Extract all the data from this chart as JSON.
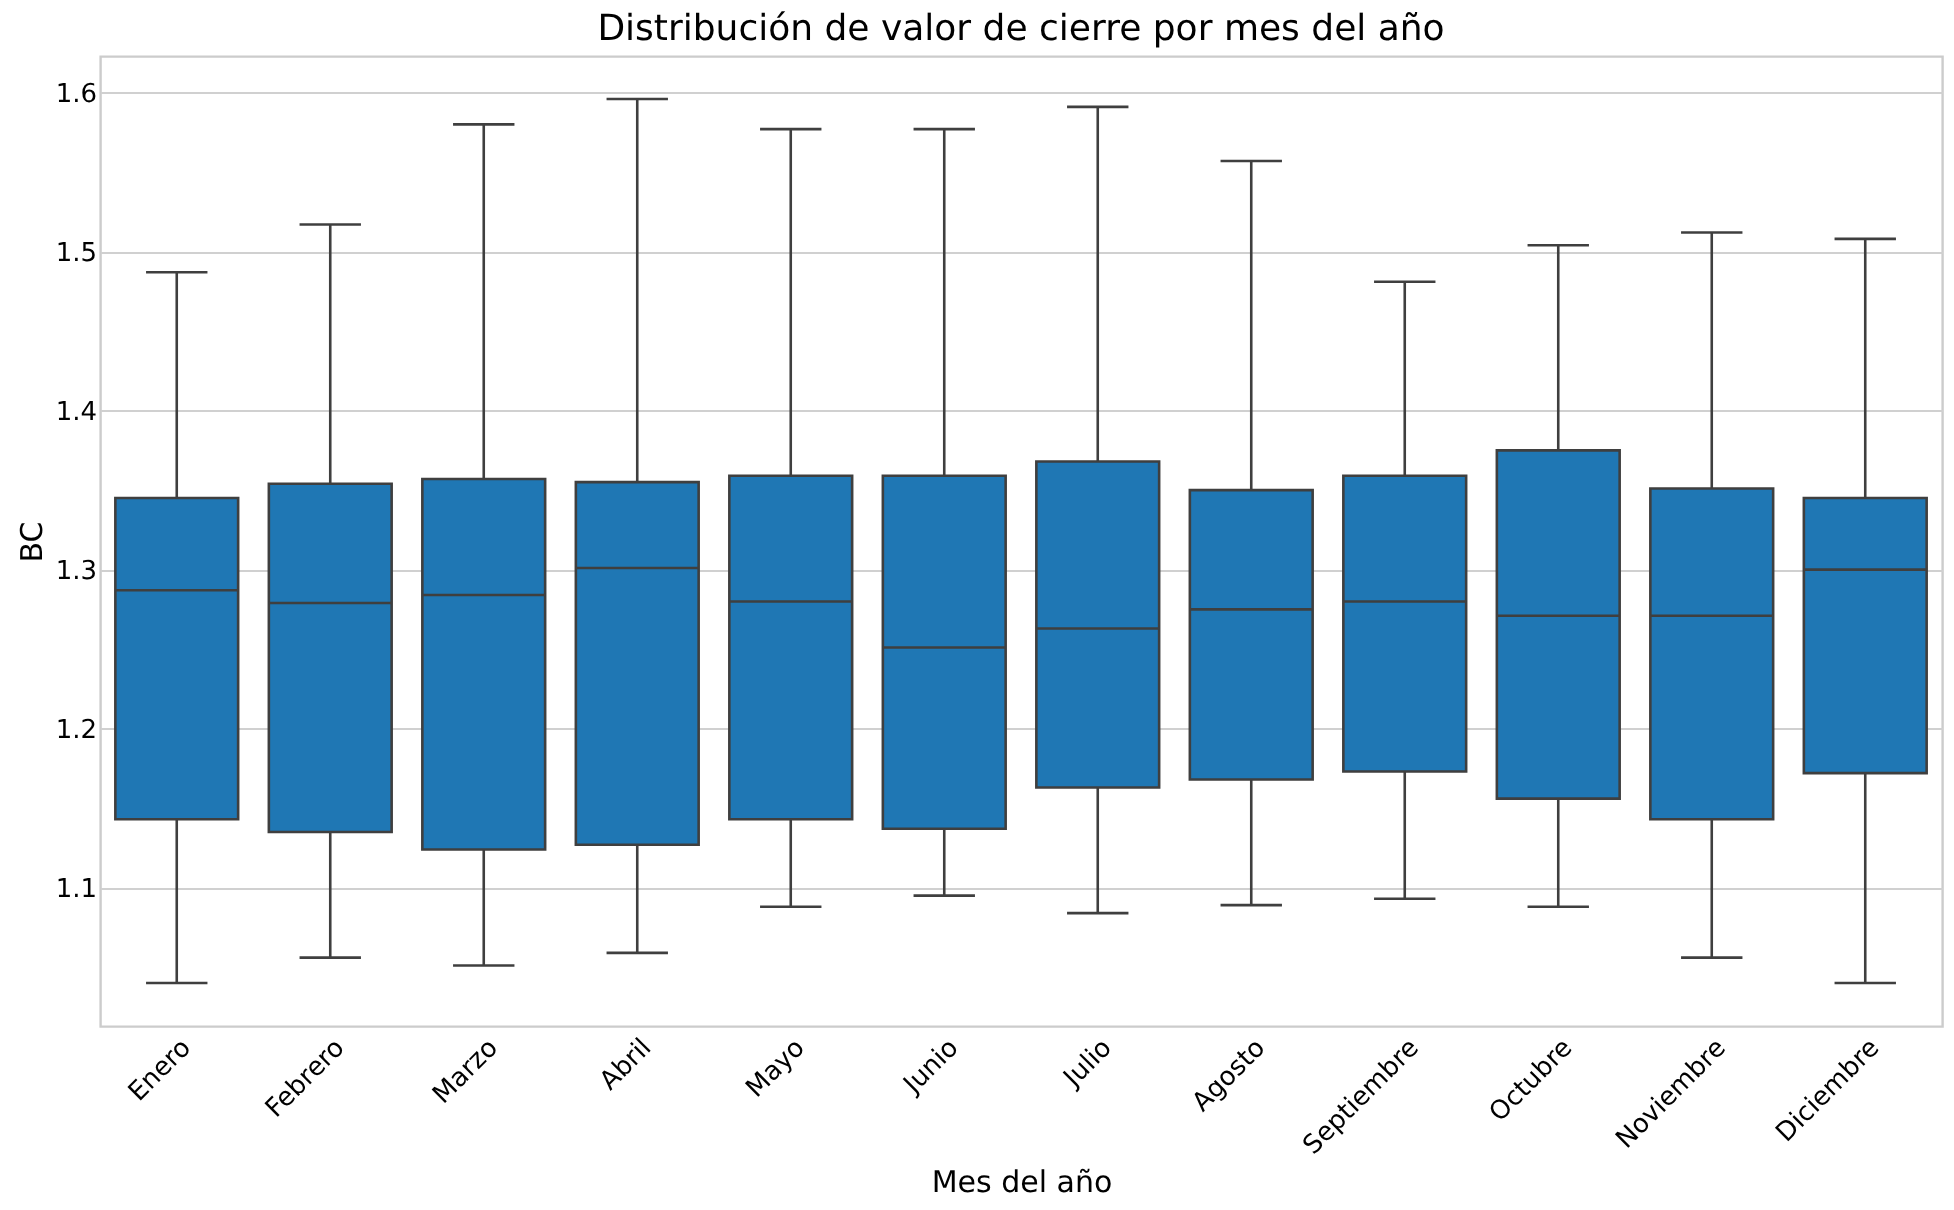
{
  "chart_data": {
    "type": "box",
    "title": "Distribución de valor de cierre por mes del año",
    "xlabel": "Mes del año",
    "ylabel": "BC",
    "categories": [
      "Enero",
      "Febrero",
      "Marzo",
      "Abril",
      "Mayo",
      "Junio",
      "Julio",
      "Agosto",
      "Septiembre",
      "Octubre",
      "Noviembre",
      "Diciembre"
    ],
    "color": "#1f77b4",
    "boxes": [
      {
        "low": 1.04,
        "q1": 1.143,
        "median": 1.287,
        "q3": 1.345,
        "high": 1.487
      },
      {
        "low": 1.056,
        "q1": 1.135,
        "median": 1.279,
        "q3": 1.354,
        "high": 1.517
      },
      {
        "low": 1.051,
        "q1": 1.124,
        "median": 1.284,
        "q3": 1.357,
        "high": 1.58
      },
      {
        "low": 1.059,
        "q1": 1.127,
        "median": 1.301,
        "q3": 1.355,
        "high": 1.596
      },
      {
        "low": 1.088,
        "q1": 1.143,
        "median": 1.28,
        "q3": 1.359,
        "high": 1.577
      },
      {
        "low": 1.095,
        "q1": 1.137,
        "median": 1.251,
        "q3": 1.359,
        "high": 1.577
      },
      {
        "low": 1.084,
        "q1": 1.163,
        "median": 1.263,
        "q3": 1.368,
        "high": 1.591
      },
      {
        "low": 1.089,
        "q1": 1.168,
        "median": 1.275,
        "q3": 1.35,
        "high": 1.557
      },
      {
        "low": 1.093,
        "q1": 1.173,
        "median": 1.28,
        "q3": 1.359,
        "high": 1.481
      },
      {
        "low": 1.088,
        "q1": 1.156,
        "median": 1.271,
        "q3": 1.375,
        "high": 1.504
      },
      {
        "low": 1.056,
        "q1": 1.143,
        "median": 1.271,
        "q3": 1.351,
        "high": 1.512
      },
      {
        "low": 1.04,
        "q1": 1.172,
        "median": 1.3,
        "q3": 1.345,
        "high": 1.508
      }
    ],
    "ylim": [
      1.013,
      1.623
    ],
    "yticks": [
      1.1,
      1.2,
      1.3,
      1.4,
      1.5,
      1.6
    ],
    "grid": "y"
  }
}
